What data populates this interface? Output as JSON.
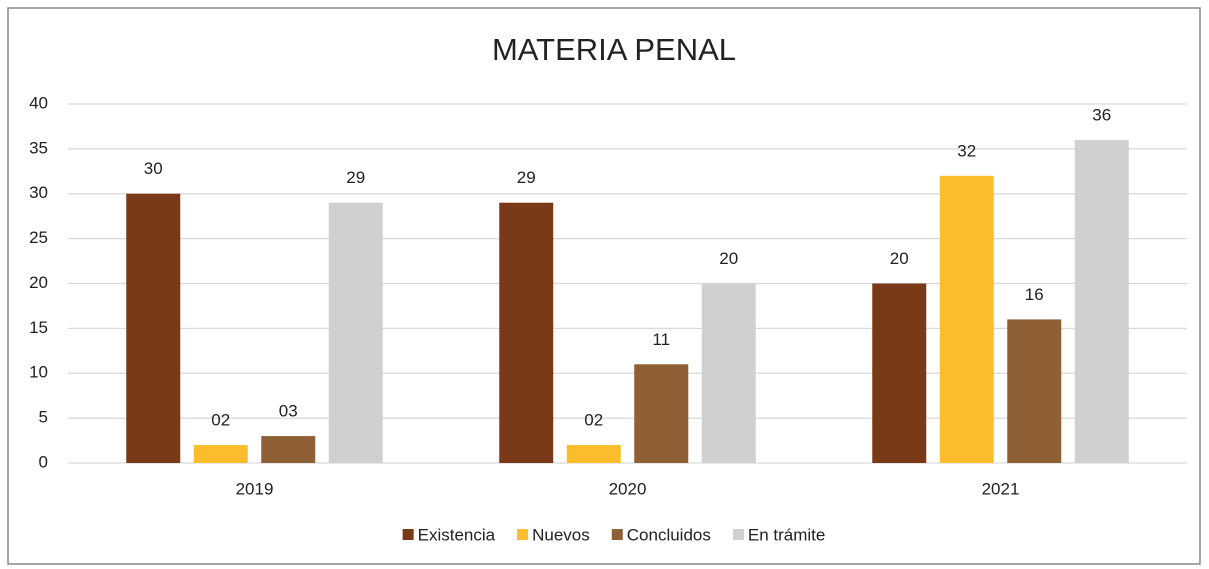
{
  "chart_data": {
    "type": "bar",
    "title": "MATERIA PENAL",
    "categories": [
      "2019",
      "2020",
      "2021"
    ],
    "series": [
      {
        "name": "Existencia",
        "color": "#7b3a17",
        "values": [
          30,
          29,
          20
        ],
        "value_labels": [
          "30",
          "29",
          "20"
        ]
      },
      {
        "name": "Nuevos",
        "color": "#fbbd2b",
        "values": [
          2,
          2,
          32
        ],
        "value_labels": [
          "02",
          "02",
          "32"
        ]
      },
      {
        "name": "Concluidos",
        "color": "#8f5f35",
        "values": [
          3,
          11,
          16
        ],
        "value_labels": [
          "03",
          "11",
          "16"
        ]
      },
      {
        "name": "En trámite",
        "color": "#d0d0d0",
        "values": [
          29,
          20,
          36
        ],
        "value_labels": [
          "29",
          "20",
          "36"
        ]
      }
    ],
    "ylim": [
      0,
      40
    ],
    "yticks": [
      0,
      5,
      10,
      15,
      20,
      25,
      30,
      35,
      40
    ],
    "grid": true,
    "legend": "bottom"
  }
}
